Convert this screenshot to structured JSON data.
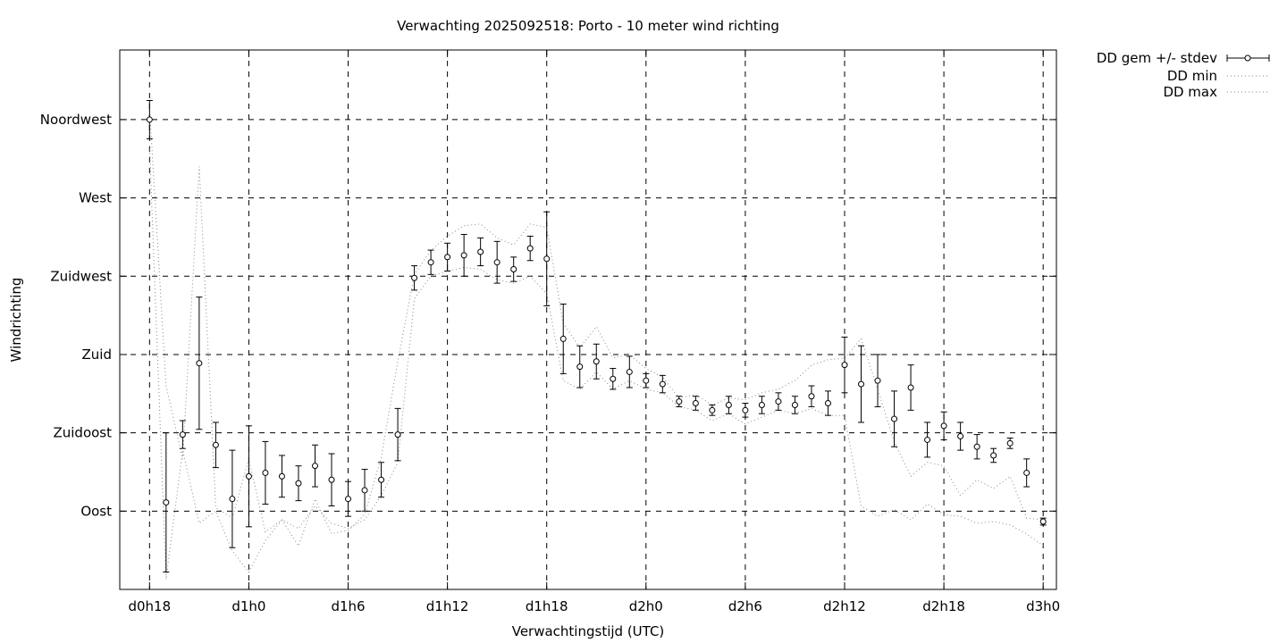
{
  "chart_data": {
    "type": "scatter",
    "title": "Verwachting 2025092518: Porto - 10 meter wind richting",
    "xlabel": "Verwachtingstijd (UTC)",
    "ylabel": "Windrichting",
    "x_unit": "hours since d0h18",
    "xlim": [
      -1.8,
      54.8
    ],
    "ylim": [
      45,
      355
    ],
    "grid": true,
    "legend_position": "top-right outside plot",
    "x_ticks": [
      {
        "value": 0,
        "label": "d0h18"
      },
      {
        "value": 6,
        "label": "d1h0"
      },
      {
        "value": 12,
        "label": "d1h6"
      },
      {
        "value": 18,
        "label": "d1h12"
      },
      {
        "value": 24,
        "label": "d1h18"
      },
      {
        "value": 30,
        "label": "d2h0"
      },
      {
        "value": 36,
        "label": "d2h6"
      },
      {
        "value": 42,
        "label": "d2h12"
      },
      {
        "value": 48,
        "label": "d2h18"
      },
      {
        "value": 54,
        "label": "d3h0"
      }
    ],
    "y_ticks": [
      {
        "value": 90,
        "label": "Oost"
      },
      {
        "value": 135,
        "label": "Zuidoost"
      },
      {
        "value": 180,
        "label": "Zuid"
      },
      {
        "value": 225,
        "label": "Zuidwest"
      },
      {
        "value": 270,
        "label": "West"
      },
      {
        "value": 315,
        "label": "Noordwest"
      }
    ],
    "legend": [
      {
        "label": "DD gem +/- stdev",
        "style": "errorbar"
      },
      {
        "label": "DD min",
        "style": "dotted"
      },
      {
        "label": "DD max",
        "style": "dotted"
      }
    ],
    "series": [
      {
        "name": "DD gem +/- stdev",
        "style": "errorbar",
        "x": [
          0,
          1,
          2,
          3,
          4,
          5,
          6,
          7,
          8,
          9,
          10,
          11,
          12,
          13,
          14,
          15,
          16,
          17,
          18,
          19,
          20,
          21,
          22,
          23,
          24,
          25,
          26,
          27,
          28,
          29,
          30,
          31,
          32,
          33,
          34,
          35,
          36,
          37,
          38,
          39,
          40,
          41,
          42,
          43,
          44,
          45,
          46,
          47,
          48,
          49,
          50,
          51,
          52,
          53,
          54
        ],
        "y": [
          315,
          95,
          134,
          175,
          128,
          97,
          110,
          112,
          110,
          106,
          116,
          108,
          97,
          102,
          108,
          134,
          224,
          233,
          236,
          237,
          239,
          233,
          229,
          241,
          235,
          189,
          173,
          176,
          166,
          170,
          165,
          163,
          153,
          152,
          148,
          151,
          148,
          151,
          153,
          151,
          156,
          152,
          174,
          163,
          165,
          143,
          161,
          131,
          139,
          133,
          127,
          122,
          129,
          112,
          84
        ],
        "err": [
          11,
          40,
          8,
          38,
          13,
          28,
          29,
          18,
          12,
          10,
          12,
          15,
          10,
          12,
          10,
          15,
          7,
          7,
          8,
          12,
          8,
          12,
          7,
          7,
          27,
          20,
          12,
          10,
          6,
          9,
          4,
          5,
          3,
          4,
          3,
          5,
          4,
          5,
          5,
          5,
          6,
          7,
          16,
          22,
          15,
          16,
          13,
          10,
          8,
          8,
          7,
          4,
          3,
          8,
          2
        ]
      },
      {
        "name": "DD min",
        "style": "dotted",
        "x": [
          0,
          1,
          2,
          3,
          4,
          5,
          6,
          7,
          8,
          9,
          10,
          11,
          12,
          13,
          14,
          15,
          16,
          17,
          18,
          19,
          20,
          21,
          22,
          23,
          24,
          25,
          26,
          27,
          28,
          29,
          30,
          31,
          32,
          33,
          34,
          35,
          36,
          37,
          38,
          39,
          40,
          41,
          42,
          43,
          44,
          45,
          46,
          47,
          48,
          49,
          50,
          51,
          52,
          53,
          54
        ],
        "y": [
          300,
          51,
          125,
          83,
          90,
          67,
          55,
          73,
          85,
          80,
          93,
          83,
          80,
          85,
          99,
          118,
          212,
          225,
          228,
          230,
          229,
          223,
          221,
          225,
          215,
          165,
          160,
          170,
          160,
          165,
          160,
          158,
          150,
          148,
          142,
          146,
          140,
          144,
          148,
          146,
          149,
          145,
          145,
          93,
          87,
          91,
          85,
          94,
          88,
          87,
          83,
          84,
          82,
          77,
          70
        ],
        "err": []
      },
      {
        "name": "DD max",
        "style": "dotted",
        "x": [
          0,
          1,
          2,
          3,
          4,
          5,
          6,
          7,
          8,
          9,
          10,
          11,
          12,
          13,
          14,
          15,
          16,
          17,
          18,
          19,
          20,
          21,
          22,
          23,
          24,
          25,
          26,
          27,
          28,
          29,
          30,
          31,
          32,
          33,
          34,
          35,
          36,
          37,
          38,
          39,
          40,
          41,
          42,
          43,
          44,
          45,
          46,
          47,
          48,
          49,
          50,
          51,
          52,
          53,
          54
        ],
        "y": [
          322,
          162,
          120,
          288,
          92,
          86,
          120,
          78,
          85,
          70,
          97,
          77,
          79,
          88,
          121,
          176,
          226,
          240,
          248,
          254,
          255,
          247,
          243,
          255,
          253,
          198,
          184,
          196,
          178,
          180,
          172,
          167,
          155,
          157,
          151,
          155,
          154,
          158,
          160,
          165,
          174,
          177,
          178,
          189,
          160,
          130,
          110,
          118,
          116,
          99,
          108,
          103,
          110,
          86,
          85
        ],
        "err": []
      }
    ]
  }
}
